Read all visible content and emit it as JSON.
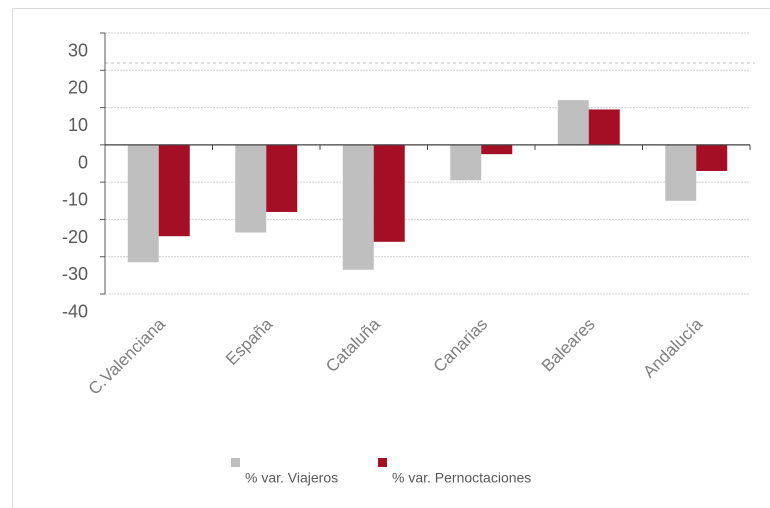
{
  "chart_data": {
    "type": "bar",
    "categories": [
      "C.Valenciana",
      "España",
      "Cataluña",
      "Canarias",
      "Baleares",
      "Andalucía"
    ],
    "series": [
      {
        "name": "% var. Viajeros",
        "color": "#bfbfbf",
        "values": [
          -31.5,
          -23.5,
          -33.5,
          -9.5,
          12,
          -15
        ]
      },
      {
        "name": "% var. Pernoctaciones",
        "color": "#a50f25",
        "values": [
          -24.5,
          -18,
          -26,
          -2.5,
          9.5,
          -7
        ]
      }
    ],
    "ylim": [
      -40,
      30
    ],
    "yticks": [
      30,
      20,
      10,
      0,
      -10,
      -20,
      -30,
      -40
    ],
    "grid": true,
    "legend": "bottom"
  }
}
